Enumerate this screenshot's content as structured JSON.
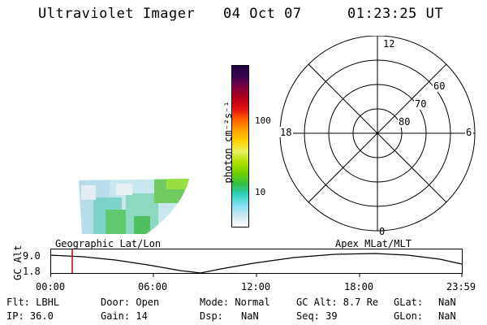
{
  "header": {
    "title": "Ultraviolet Imager",
    "date": "04 Oct 07",
    "time": "01:23:25 UT"
  },
  "colorbar": {
    "label": "photon cm⁻²s⁻¹",
    "ticks": [
      "100",
      "10"
    ],
    "colors": [
      "#200040",
      "#3a0050",
      "#7a0040",
      "#b40018",
      "#e01010",
      "#ff6000",
      "#ffa000",
      "#ffd000",
      "#e8f060",
      "#b0e000",
      "#70d000",
      "#30c040",
      "#30d0c0",
      "#80e0f0",
      "#d0e8f0",
      "#ffffff"
    ]
  },
  "polar": {
    "mlt_labels": {
      "top": "12",
      "left": "18",
      "right": "6",
      "bottom": "0"
    },
    "lat_labels": [
      "60",
      "70",
      "80"
    ]
  },
  "map": {
    "geo_label": "Geographic Lat/Lon",
    "apex_label": "Apex  MLat/MLT"
  },
  "timeline": {
    "axis_label": "GC Alt",
    "alt_max": "9.0",
    "alt_min": "1.8",
    "ticks": [
      "00:00",
      "06:00",
      "12:00",
      "18:00",
      "23:59"
    ],
    "marker_color": "#d00000"
  },
  "info": {
    "flt": "Flt: LBHL",
    "ip": "IP: 36.0",
    "door": "Door: Open",
    "gain": "Gain: 14",
    "mode": "Mode: Normal",
    "dsp_label": "Dsp:",
    "dsp_value": "NaN",
    "gc_alt": "GC Alt: 8.7 Re",
    "seq": "Seq: 39",
    "glat_label": "GLat:",
    "glat_value": "NaN",
    "glon_label": "GLon:",
    "glon_value": "NaN"
  }
}
